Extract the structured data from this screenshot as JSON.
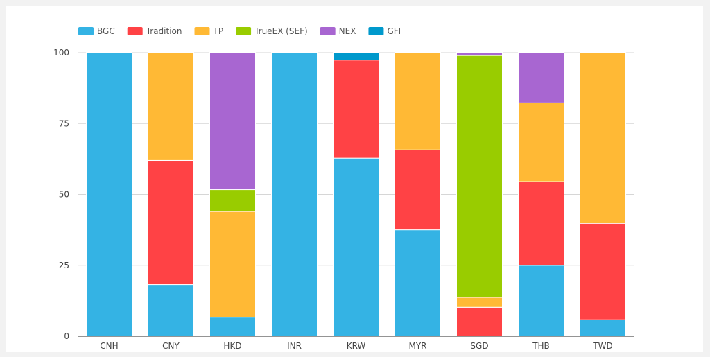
{
  "chart_data": {
    "type": "bar",
    "stacked": true,
    "categories": [
      "CNH",
      "CNY",
      "HKD",
      "INR",
      "KRW",
      "MYR",
      "SGD",
      "THB",
      "TWD"
    ],
    "series": [
      {
        "name": "BGC",
        "color": "#34b3e4",
        "values": [
          100,
          18.2,
          6.7,
          100,
          62.8,
          37.5,
          0,
          25.0,
          5.8
        ]
      },
      {
        "name": "Tradition",
        "color": "#ff4245",
        "values": [
          0,
          43.8,
          0,
          0,
          34.6,
          28.2,
          10.2,
          29.5,
          34.0
        ]
      },
      {
        "name": "TP",
        "color": "#ffb935",
        "values": [
          0,
          38.0,
          37.3,
          0,
          0,
          34.3,
          3.5,
          27.8,
          60.2
        ]
      },
      {
        "name": "TrueEX (SEF)",
        "color": "#99cc00",
        "values": [
          0,
          0,
          7.7,
          0,
          0,
          0,
          85.3,
          0,
          0
        ]
      },
      {
        "name": "NEX",
        "color": "#a866d1",
        "values": [
          0,
          0,
          48.3,
          0,
          0,
          0,
          1.0,
          17.7,
          0
        ]
      },
      {
        "name": "GFI",
        "color": "#0099cc",
        "values": [
          0,
          0,
          0,
          0,
          2.6,
          0,
          0,
          0,
          0
        ]
      }
    ],
    "ylim": [
      0,
      100
    ],
    "yticks": [
      0,
      25,
      50,
      75,
      100
    ],
    "grid": true,
    "legend_position": "top-left",
    "title": "",
    "xlabel": "",
    "ylabel": ""
  }
}
